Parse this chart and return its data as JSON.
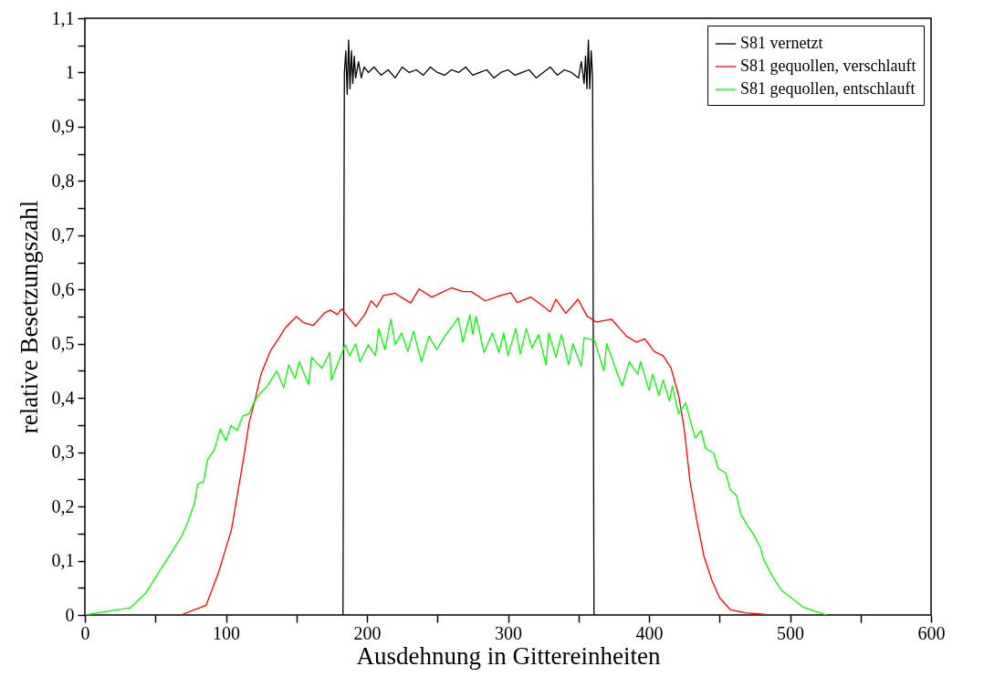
{
  "chart_data": {
    "type": "line",
    "xlabel": "Ausdehnung in Gittereinheiten",
    "ylabel": "relative Besetzungszahl",
    "xlim": [
      0,
      600
    ],
    "ylim": [
      0,
      1.1
    ],
    "xticks": [
      0,
      {
        "value": 50,
        "label": null
      },
      100,
      {
        "value": 150,
        "label": null
      },
      200,
      {
        "value": 250,
        "label": null
      },
      300,
      {
        "value": 350,
        "label": null
      },
      400,
      {
        "value": 450,
        "label": null
      },
      500,
      {
        "value": 550,
        "label": null
      },
      600
    ],
    "yticks": [
      0,
      {
        "value": 0.05,
        "label": null
      },
      {
        "value": 0.1,
        "label": "0,1"
      },
      {
        "value": 0.15,
        "label": null
      },
      {
        "value": 0.2,
        "label": "0,2"
      },
      {
        "value": 0.25,
        "label": null
      },
      {
        "value": 0.3,
        "label": "0,3"
      },
      {
        "value": 0.35,
        "label": null
      },
      {
        "value": 0.4,
        "label": "0,4"
      },
      {
        "value": 0.45,
        "label": null
      },
      {
        "value": 0.5,
        "label": "0,5"
      },
      {
        "value": 0.55,
        "label": null
      },
      {
        "value": 0.6,
        "label": "0,6"
      },
      {
        "value": 0.65,
        "label": null
      },
      {
        "value": 0.7,
        "label": "0,7"
      },
      {
        "value": 0.75,
        "label": null
      },
      {
        "value": 0.8,
        "label": "0,8"
      },
      {
        "value": 0.85,
        "label": null
      },
      {
        "value": 0.9,
        "label": "0,9"
      },
      {
        "value": 0.95,
        "label": null
      },
      1,
      {
        "value": 1.05,
        "label": null
      },
      {
        "value": 1.1,
        "label": "1,1"
      }
    ],
    "grid": false,
    "legend": "top right",
    "marker": "none",
    "line_style": "solid",
    "series": [
      {
        "name": "S81 vernetzt",
        "color": "#000000",
        "x": [
          183,
          184,
          185,
          186,
          187,
          188,
          189,
          190,
          191,
          192,
          194,
          196,
          198,
          201,
          205,
          210,
          215,
          220,
          225,
          230,
          235,
          240,
          245,
          250,
          255,
          260,
          265,
          270,
          275,
          280,
          285,
          290,
          295,
          300,
          305,
          310,
          315,
          320,
          325,
          330,
          335,
          340,
          345,
          350,
          352,
          354,
          355,
          356,
          357,
          358,
          359,
          360,
          361
        ],
        "values": [
          0,
          1.0,
          1.04,
          0.96,
          1.06,
          0.97,
          1.04,
          0.98,
          1.03,
          0.99,
          1.02,
          0.99,
          1.01,
          1.0,
          1.01,
          0.995,
          1.005,
          0.99,
          1.01,
          1.0,
          1.005,
          0.995,
          1.01,
          1.0,
          0.995,
          1.005,
          1.0,
          1.01,
          0.995,
          1.0,
          1.005,
          0.99,
          1.0,
          1.005,
          0.995,
          1.0,
          1.005,
          0.99,
          1.0,
          1.01,
          0.995,
          1.005,
          1.0,
          0.99,
          1.02,
          0.98,
          1.03,
          0.97,
          1.06,
          0.97,
          1.04,
          0.99,
          0
        ]
      },
      {
        "name": "S81 gequollen, verschlauft",
        "color": "#ff0000",
        "x": [
          68,
          86,
          95,
          104,
          108,
          112,
          116.5,
          121,
          125,
          131.6,
          138,
          142,
          150,
          155,
          162,
          170,
          174,
          179,
          182,
          192,
          198.5,
          203,
          207,
          211.6,
          220,
          231,
          237,
          246,
          260,
          268,
          274,
          284,
          293.6,
          302,
          306.6,
          316,
          323,
          330,
          334,
          341,
          349.7,
          356,
          362.7,
          373.5,
          384,
          391,
          397,
          403.6,
          410,
          415.5,
          421,
          425,
          429,
          433.8,
          439,
          444.7,
          450,
          457.6,
          468,
          483,
          500
        ],
        "values": [
          0,
          0.018,
          0.08,
          0.158,
          0.22,
          0.28,
          0.355,
          0.4,
          0.445,
          0.487,
          0.512,
          0.529,
          0.55,
          0.539,
          0.534,
          0.557,
          0.562,
          0.554,
          0.564,
          0.532,
          0.554,
          0.579,
          0.568,
          0.589,
          0.593,
          0.575,
          0.601,
          0.586,
          0.603,
          0.596,
          0.596,
          0.579,
          0.588,
          0.594,
          0.576,
          0.586,
          0.573,
          0.559,
          0.582,
          0.556,
          0.582,
          0.551,
          0.54,
          0.545,
          0.514,
          0.503,
          0.509,
          0.486,
          0.478,
          0.456,
          0.405,
          0.343,
          0.248,
          0.175,
          0.108,
          0.063,
          0.032,
          0.01,
          0.004,
          0.001,
          0
        ]
      },
      {
        "name": "S81 gequollen, entschlauft",
        "color": "#00ff00",
        "x": [
          0,
          21.6,
          32,
          43,
          54,
          62.6,
          69,
          73,
          77.7,
          80,
          84,
          87,
          91.7,
          96,
          100,
          103.6,
          108,
          112,
          116.5,
          119.7,
          124,
          129.4,
          136,
          141,
          144.5,
          149,
          152,
          158.6,
          160.7,
          168,
          173.7,
          174.8,
          184.5,
          187.7,
          192,
          195,
          200.9,
          206,
          208.4,
          212.7,
          217,
          220,
          224.6,
          229,
          233,
          238.6,
          244,
          249.4,
          256,
          261,
          264.6,
          268,
          273,
          275,
          277.4,
          283,
          289,
          293.6,
          296.9,
          300,
          305.5,
          308.7,
          313,
          317,
          321.7,
          327,
          329,
          334,
          337.9,
          343,
          346,
          352,
          354,
          361.4,
          368,
          370,
          377.7,
          381,
          386,
          392,
          394,
          400,
          402.6,
          407,
          410,
          414.5,
          416.6,
          421,
          426,
          429.6,
          432.8,
          437,
          440,
          445.7,
          449,
          454.4,
          457.6,
          462,
          465,
          469.6,
          474,
          479,
          481.3,
          487.8,
          494,
          500.7,
          509,
          517.7,
          526
        ],
        "values": [
          0,
          0.009,
          0.013,
          0.04,
          0.085,
          0.12,
          0.147,
          0.172,
          0.206,
          0.242,
          0.245,
          0.287,
          0.304,
          0.343,
          0.321,
          0.349,
          0.34,
          0.367,
          0.371,
          0.391,
          0.408,
          0.422,
          0.45,
          0.419,
          0.461,
          0.436,
          0.467,
          0.425,
          0.475,
          0.455,
          0.484,
          0.433,
          0.498,
          0.478,
          0.5,
          0.467,
          0.498,
          0.478,
          0.528,
          0.489,
          0.545,
          0.498,
          0.52,
          0.486,
          0.523,
          0.467,
          0.514,
          0.489,
          0.517,
          0.534,
          0.548,
          0.503,
          0.553,
          0.517,
          0.551,
          0.484,
          0.52,
          0.484,
          0.52,
          0.478,
          0.528,
          0.481,
          0.528,
          0.492,
          0.517,
          0.461,
          0.52,
          0.475,
          0.517,
          0.461,
          0.5,
          0.458,
          0.511,
          0.506,
          0.45,
          0.5,
          0.444,
          0.422,
          0.467,
          0.444,
          0.467,
          0.414,
          0.444,
          0.405,
          0.433,
          0.394,
          0.422,
          0.371,
          0.391,
          0.355,
          0.326,
          0.34,
          0.307,
          0.299,
          0.27,
          0.262,
          0.231,
          0.22,
          0.186,
          0.166,
          0.149,
          0.124,
          0.102,
          0.07,
          0.045,
          0.032,
          0.015,
          0.007,
          0
        ]
      }
    ]
  }
}
